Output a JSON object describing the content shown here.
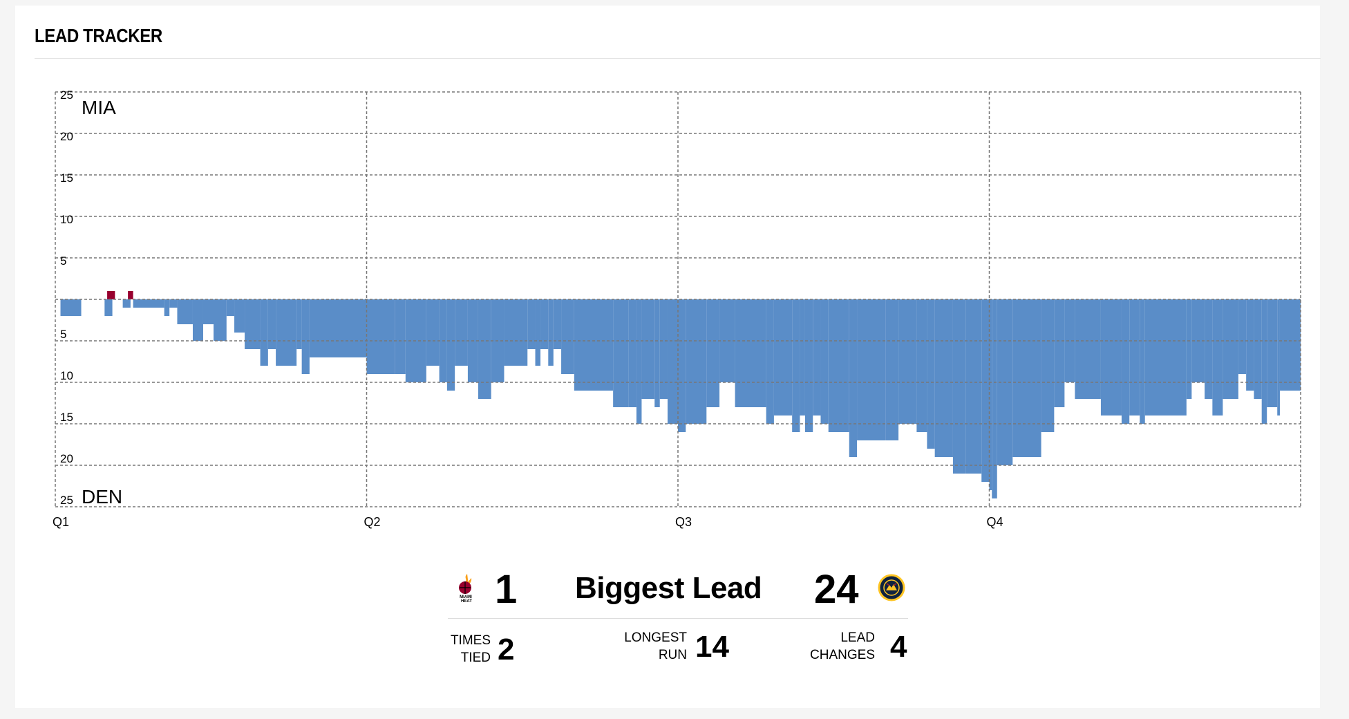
{
  "header": {
    "title": "LEAD TRACKER"
  },
  "chart_data": {
    "type": "area",
    "title": "",
    "xlabel": "",
    "ylabel": "",
    "x_ticks": [
      "Q1",
      "Q2",
      "Q3",
      "Q4"
    ],
    "top_team_label": "MIA",
    "bottom_team_label": "DEN",
    "y_tick_labels": [
      "25",
      "20",
      "15",
      "10",
      "5",
      "5",
      "10",
      "15",
      "20",
      "25"
    ],
    "ylim": [
      -25,
      25
    ],
    "xlim": [
      0,
      48
    ],
    "grid": true,
    "colors": {
      "MIA": "#98002e",
      "DEN": "#5a8dc8",
      "grid": "#777777"
    },
    "series": [
      {
        "name": "MIA",
        "points": [
          [
            2.0,
            1
          ],
          [
            2.3,
            0
          ],
          [
            2.8,
            1
          ],
          [
            3.0,
            0
          ]
        ]
      },
      {
        "name": "DEN",
        "points": [
          [
            0.0,
            0
          ],
          [
            0.2,
            -2
          ],
          [
            1.0,
            0
          ],
          [
            1.9,
            -2
          ],
          [
            2.2,
            0
          ],
          [
            2.6,
            -1
          ],
          [
            2.9,
            0
          ],
          [
            3.0,
            -1
          ],
          [
            4.2,
            -2
          ],
          [
            4.4,
            -1
          ],
          [
            4.7,
            -3
          ],
          [
            5.3,
            -5
          ],
          [
            5.7,
            -3
          ],
          [
            6.1,
            -5
          ],
          [
            6.6,
            -2
          ],
          [
            6.9,
            -4
          ],
          [
            7.3,
            -6
          ],
          [
            7.9,
            -8
          ],
          [
            8.2,
            -6
          ],
          [
            8.5,
            -8
          ],
          [
            9.3,
            -6
          ],
          [
            9.5,
            -9
          ],
          [
            9.8,
            -7
          ],
          [
            12.0,
            -9
          ],
          [
            13.1,
            -9
          ],
          [
            13.5,
            -10
          ],
          [
            14.3,
            -8
          ],
          [
            14.8,
            -10
          ],
          [
            15.1,
            -11
          ],
          [
            15.4,
            -8
          ],
          [
            15.9,
            -10
          ],
          [
            16.3,
            -12
          ],
          [
            16.8,
            -10
          ],
          [
            17.3,
            -8
          ],
          [
            18.2,
            -6
          ],
          [
            18.5,
            -8
          ],
          [
            18.7,
            -6
          ],
          [
            19.0,
            -8
          ],
          [
            19.2,
            -6
          ],
          [
            19.5,
            -9
          ],
          [
            20.0,
            -11
          ],
          [
            21.5,
            -13
          ],
          [
            22.1,
            -13
          ],
          [
            22.4,
            -15
          ],
          [
            22.6,
            -12
          ],
          [
            23.1,
            -13
          ],
          [
            23.3,
            -12
          ],
          [
            23.6,
            -15
          ],
          [
            24.0,
            -16
          ],
          [
            24.3,
            -15
          ],
          [
            25.1,
            -13
          ],
          [
            25.6,
            -10
          ],
          [
            26.2,
            -13
          ],
          [
            27.4,
            -15
          ],
          [
            27.7,
            -14
          ],
          [
            28.4,
            -16
          ],
          [
            28.7,
            -14
          ],
          [
            28.9,
            -16
          ],
          [
            29.2,
            -14
          ],
          [
            29.5,
            -15
          ],
          [
            29.8,
            -16
          ],
          [
            30.6,
            -19
          ],
          [
            30.9,
            -17
          ],
          [
            32.0,
            -17
          ],
          [
            32.5,
            -15
          ],
          [
            33.2,
            -16
          ],
          [
            33.6,
            -18
          ],
          [
            33.9,
            -19
          ],
          [
            34.6,
            -21
          ],
          [
            35.1,
            -21
          ],
          [
            35.7,
            -22
          ],
          [
            36.0,
            -23
          ],
          [
            36.1,
            -24
          ],
          [
            36.3,
            -20
          ],
          [
            36.9,
            -19
          ],
          [
            38.0,
            -16
          ],
          [
            38.5,
            -13
          ],
          [
            38.9,
            -10
          ],
          [
            39.3,
            -12
          ],
          [
            40.3,
            -14
          ],
          [
            41.1,
            -15
          ],
          [
            41.4,
            -14
          ],
          [
            41.8,
            -15
          ],
          [
            42.0,
            -14
          ],
          [
            43.6,
            -12
          ],
          [
            43.8,
            -10
          ],
          [
            44.3,
            -12
          ],
          [
            44.6,
            -14
          ],
          [
            45.0,
            -12
          ],
          [
            45.6,
            -9
          ],
          [
            45.9,
            -11
          ],
          [
            46.2,
            -12
          ],
          [
            46.5,
            -15
          ],
          [
            46.7,
            -13
          ],
          [
            47.1,
            -14
          ],
          [
            47.2,
            -11
          ],
          [
            48.0,
            -11
          ]
        ]
      }
    ]
  },
  "stats": {
    "mia_biggest_lead": "1",
    "biggest_lead_label": "Biggest Lead",
    "den_biggest_lead": "24",
    "times_tied_label_1": "TIMES",
    "times_tied_label_2": "TIED",
    "times_tied_value": "2",
    "longest_run_label_1": "LONGEST",
    "longest_run_label_2": "RUN",
    "longest_run_value": "14",
    "lead_changes_label_1": "LEAD",
    "lead_changes_label_2": "CHANGES",
    "lead_changes_value": "4",
    "mia_logo_text": "MIAMI HEAT"
  }
}
